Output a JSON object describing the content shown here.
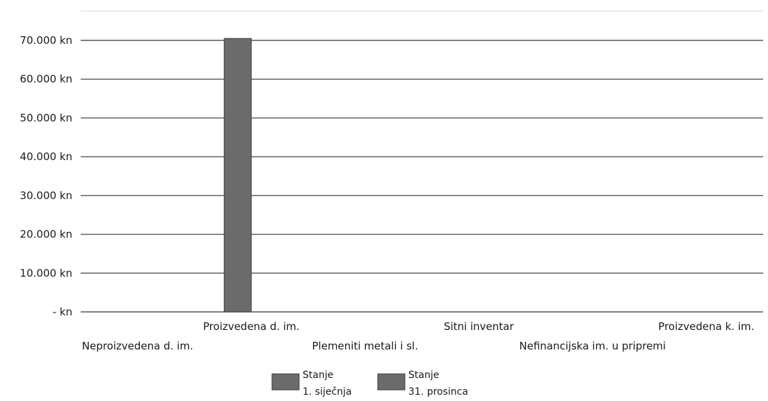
{
  "chart_data": {
    "type": "bar",
    "title": "",
    "xlabel": "",
    "ylabel": "",
    "categories": [
      "Neproizvedena d. im.",
      "Proizvedena d. im.",
      "Plemeniti metali i sl.",
      "Sitni inventar",
      "Nefinancijska im. u pripremi",
      "Proizvedena k. im."
    ],
    "series": [
      {
        "name": "Stanje 1. siječnja",
        "name_lines": [
          "Stanje",
          "1. siječnja"
        ],
        "color": "#6b6b6b",
        "values": [
          0,
          70500,
          0,
          0,
          0,
          0
        ]
      },
      {
        "name": "Stanje 31. prosinca",
        "name_lines": [
          "Stanje",
          "31. prosinca"
        ],
        "color": "#6b6b6b",
        "values": [
          0,
          0,
          0,
          0,
          0,
          0
        ]
      }
    ],
    "ylim": [
      0,
      70000
    ],
    "yticks": [
      0,
      10000,
      20000,
      30000,
      40000,
      50000,
      60000,
      70000
    ],
    "ytick_labels": [
      "- kn",
      "10.000 kn",
      "20.000 kn",
      "30.000 kn",
      "40.000 kn",
      "50.000 kn",
      "60.000 kn",
      "70.000 kn"
    ],
    "grid": true,
    "legend_position": "bottom"
  }
}
